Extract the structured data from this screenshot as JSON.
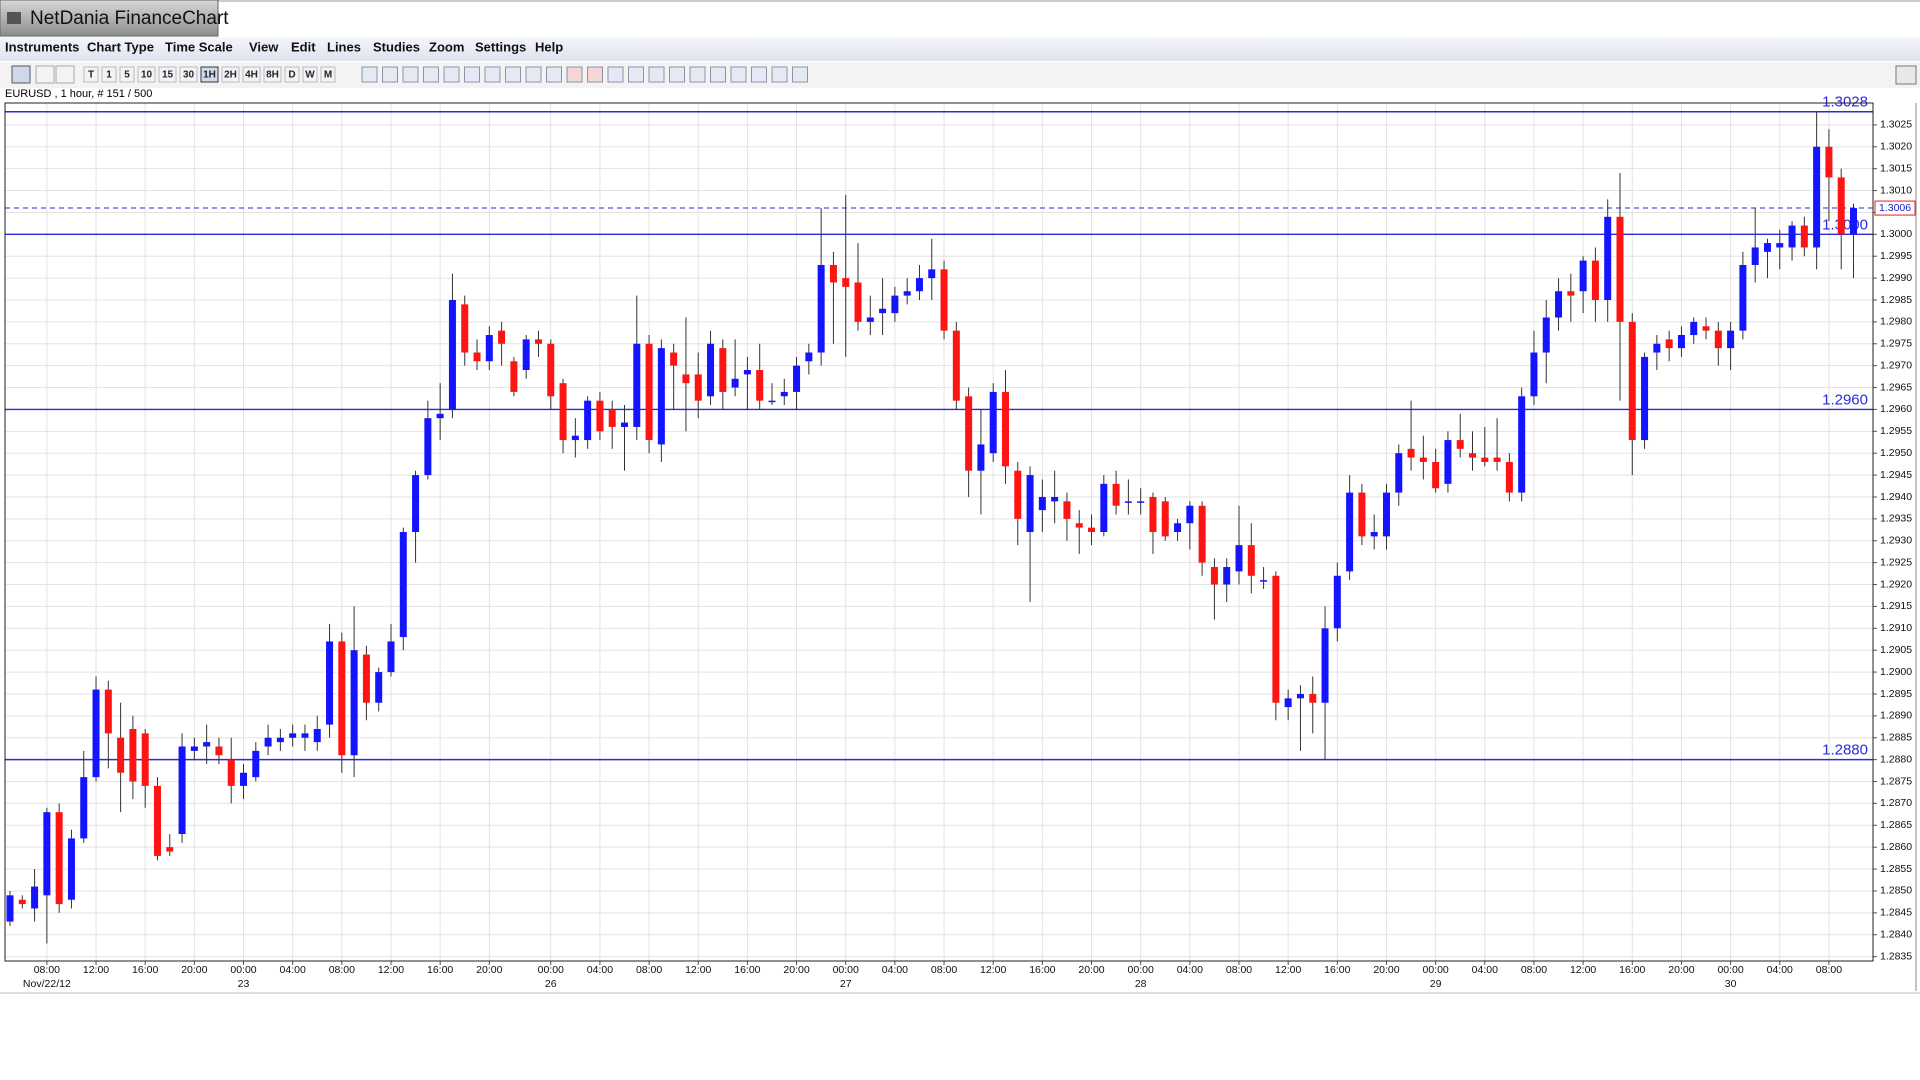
{
  "app": {
    "title": "NetDania FinanceChart",
    "menu": [
      "Instruments",
      "Chart Type",
      "Time Scale",
      "View",
      "Edit",
      "Lines",
      "Studies",
      "Zoom",
      "Settings",
      "Help"
    ],
    "timeframes": [
      "T",
      "1",
      "5",
      "10",
      "15",
      "30",
      "1H",
      "2H",
      "4H",
      "8H",
      "D",
      "W",
      "M"
    ],
    "info": "EURUSD , 1 hour, # 151 / 500"
  },
  "chart_data": {
    "type": "candlestick",
    "up_color": "#1414ff",
    "down_color": "#ff1414",
    "grid": true,
    "ylim": [
      1.2834,
      1.303
    ],
    "yticks": [
      1.2835,
      {
        "value": 1.284,
        "label": "1.2840"
      },
      1.2845,
      {
        "value": 1.285,
        "label": "1.2850"
      },
      1.2855,
      {
        "value": 1.286,
        "label": "1.2860"
      },
      1.2865,
      {
        "value": 1.287,
        "label": "1.2870"
      },
      1.2875,
      {
        "value": 1.288,
        "label": "1.2880"
      },
      1.2885,
      {
        "value": 1.289,
        "label": "1.2890"
      },
      1.2895,
      {
        "value": 1.29,
        "label": "1.2900"
      },
      1.2905,
      {
        "value": 1.291,
        "label": "1.2910"
      },
      1.2915,
      {
        "value": 1.292,
        "label": "1.2920"
      },
      1.2925,
      {
        "value": 1.293,
        "label": "1.2930"
      },
      1.2935,
      {
        "value": 1.294,
        "label": "1.2940"
      },
      1.2945,
      {
        "value": 1.295,
        "label": "1.2950"
      },
      1.2955,
      {
        "value": 1.296,
        "label": "1.2960"
      },
      1.2965,
      {
        "value": 1.297,
        "label": "1.2970"
      },
      1.2975,
      {
        "value": 1.298,
        "label": "1.2980"
      },
      1.2985,
      {
        "value": 1.299,
        "label": "1.2990"
      },
      1.2995,
      {
        "value": 1.3,
        "label": "1.3000"
      },
      1.3005,
      {
        "value": 1.301,
        "label": "1.3010"
      },
      1.3015,
      {
        "value": 1.302,
        "label": "1.3020"
      },
      1.3025
    ],
    "xticks": [
      {
        "value": 3,
        "label": "08:00"
      },
      {
        "value": 7,
        "label": "12:00"
      },
      {
        "value": 11,
        "label": "16:00"
      },
      {
        "value": 15,
        "label": "20:00"
      },
      {
        "value": 19,
        "label": "00:00"
      },
      {
        "value": 23,
        "label": "04:00"
      },
      {
        "value": 27,
        "label": "08:00"
      },
      {
        "value": 31,
        "label": "12:00"
      },
      {
        "value": 35,
        "label": "16:00"
      },
      {
        "value": 39,
        "label": "20:00"
      },
      {
        "value": 44,
        "label": "00:00"
      },
      {
        "value": 48,
        "label": "04:00"
      },
      {
        "value": 52,
        "label": "08:00"
      },
      {
        "value": 56,
        "label": "12:00"
      },
      {
        "value": 60,
        "label": "16:00"
      },
      {
        "value": 64,
        "label": "20:00"
      },
      {
        "value": 68,
        "label": "00:00"
      },
      {
        "value": 72,
        "label": "04:00"
      },
      {
        "value": 76,
        "label": "08:00"
      },
      {
        "value": 80,
        "label": "12:00"
      },
      {
        "value": 84,
        "label": "16:00"
      },
      {
        "value": 88,
        "label": "20:00"
      },
      {
        "value": 92,
        "label": "00:00"
      },
      {
        "value": 96,
        "label": "04:00"
      },
      {
        "value": 100,
        "label": "08:00"
      },
      {
        "value": 104,
        "label": "12:00"
      },
      {
        "value": 108,
        "label": "16:00"
      },
      {
        "value": 112,
        "label": "20:00"
      },
      {
        "value": 116,
        "label": "00:00"
      },
      {
        "value": 120,
        "label": "04:00"
      },
      {
        "value": 124,
        "label": "08:00"
      },
      {
        "value": 128,
        "label": "12:00"
      },
      {
        "value": 132,
        "label": "16:00"
      },
      {
        "value": 136,
        "label": "20:00"
      },
      {
        "value": 140,
        "label": "00:00"
      },
      {
        "value": 144,
        "label": "04:00"
      },
      {
        "value": 148,
        "label": "08:00"
      }
    ],
    "xdates": [
      {
        "value": 3,
        "label": "Nov/22/12"
      },
      {
        "value": 19,
        "label": "23"
      },
      {
        "value": 44,
        "label": "26"
      },
      {
        "value": 68,
        "label": "27"
      },
      {
        "value": 92,
        "label": "28"
      },
      {
        "value": 116,
        "label": "29"
      },
      {
        "value": 140,
        "label": "30"
      }
    ],
    "levels": [
      {
        "value": 1.3028,
        "label": "1.3028"
      },
      {
        "value": 1.3,
        "label": "1.3000"
      },
      {
        "value": 1.296,
        "label": "1.2960"
      },
      {
        "value": 1.288,
        "label": "1.2880"
      }
    ],
    "last_price": {
      "value": 1.3006,
      "label": "1.3006"
    },
    "candles": [
      [
        1.2843,
        1.285,
        1.2842,
        1.2849
      ],
      [
        1.2848,
        1.2849,
        1.2846,
        1.2847
      ],
      [
        1.2846,
        1.2855,
        1.2843,
        1.2851
      ],
      [
        1.2849,
        1.2869,
        1.2838,
        1.2868
      ],
      [
        1.2868,
        1.287,
        1.2845,
        1.2847
      ],
      [
        1.2848,
        1.2864,
        1.2846,
        1.2862
      ],
      [
        1.2862,
        1.2882,
        1.2861,
        1.2876
      ],
      [
        1.2876,
        1.2899,
        1.2875,
        1.2896
      ],
      [
        1.2896,
        1.2898,
        1.2878,
        1.2886
      ],
      [
        1.2885,
        1.2893,
        1.2868,
        1.2877
      ],
      [
        1.2887,
        1.289,
        1.2871,
        1.2875
      ],
      [
        1.2886,
        1.2887,
        1.2869,
        1.2874
      ],
      [
        1.2874,
        1.2876,
        1.2857,
        1.2858
      ],
      [
        1.286,
        1.2863,
        1.2858,
        1.2859
      ],
      [
        1.2863,
        1.2886,
        1.2861,
        1.2883
      ],
      [
        1.2882,
        1.2885,
        1.288,
        1.2883
      ],
      [
        1.2883,
        1.2888,
        1.2879,
        1.2884
      ],
      [
        1.2883,
        1.2885,
        1.2879,
        1.2881
      ],
      [
        1.288,
        1.2885,
        1.287,
        1.2874
      ],
      [
        1.2874,
        1.2879,
        1.2871,
        1.2877
      ],
      [
        1.2876,
        1.2884,
        1.2875,
        1.2882
      ],
      [
        1.2883,
        1.2888,
        1.2881,
        1.2885
      ],
      [
        1.2884,
        1.2887,
        1.2882,
        1.2885
      ],
      [
        1.2885,
        1.2888,
        1.2883,
        1.2886
      ],
      [
        1.2885,
        1.2888,
        1.2882,
        1.2886
      ],
      [
        1.2884,
        1.289,
        1.2882,
        1.2887
      ],
      [
        1.2888,
        1.2911,
        1.2885,
        1.2907
      ],
      [
        1.2907,
        1.2909,
        1.2877,
        1.2881
      ],
      [
        1.2881,
        1.2915,
        1.2876,
        1.2905
      ],
      [
        1.2904,
        1.2906,
        1.2889,
        1.2893
      ],
      [
        1.2893,
        1.2901,
        1.2891,
        1.29
      ],
      [
        1.29,
        1.2911,
        1.2899,
        1.2907
      ],
      [
        1.2908,
        1.2933,
        1.2905,
        1.2932
      ],
      [
        1.2932,
        1.2946,
        1.2925,
        1.2945
      ],
      [
        1.2945,
        1.2962,
        1.2944,
        1.2958
      ],
      [
        1.2958,
        1.2966,
        1.2953,
        1.2959
      ],
      [
        1.296,
        1.2991,
        1.2958,
        1.2985
      ],
      [
        1.2984,
        1.2986,
        1.297,
        1.2973
      ],
      [
        1.2973,
        1.2976,
        1.2969,
        1.2971
      ],
      [
        1.2971,
        1.2979,
        1.2969,
        1.2977
      ],
      [
        1.2978,
        1.298,
        1.297,
        1.2975
      ],
      [
        1.2971,
        1.2972,
        1.2963,
        1.2964
      ],
      [
        1.2969,
        1.2977,
        1.2967,
        1.2976
      ],
      [
        1.2976,
        1.2978,
        1.2972,
        1.2975
      ],
      [
        1.2975,
        1.2976,
        1.296,
        1.2963
      ],
      [
        1.2966,
        1.2967,
        1.295,
        1.2953
      ],
      [
        1.2953,
        1.2958,
        1.2949,
        1.2954
      ],
      [
        1.2953,
        1.2963,
        1.2951,
        1.2962
      ],
      [
        1.2962,
        1.2964,
        1.2953,
        1.2955
      ],
      [
        1.296,
        1.2962,
        1.2951,
        1.2956
      ],
      [
        1.2956,
        1.2961,
        1.2946,
        1.2957
      ],
      [
        1.2956,
        1.2986,
        1.2953,
        1.2975
      ],
      [
        1.2975,
        1.2977,
        1.295,
        1.2953
      ],
      [
        1.2952,
        1.2976,
        1.2948,
        1.2974
      ],
      [
        1.2973,
        1.2975,
        1.296,
        1.297
      ],
      [
        1.2968,
        1.2981,
        1.2955,
        1.2966
      ],
      [
        1.2968,
        1.2973,
        1.2958,
        1.2962
      ],
      [
        1.2963,
        1.2978,
        1.2961,
        1.2975
      ],
      [
        1.2974,
        1.2976,
        1.296,
        1.2964
      ],
      [
        1.2965,
        1.2976,
        1.2963,
        1.2967
      ],
      [
        1.2968,
        1.2972,
        1.296,
        1.2969
      ],
      [
        1.2969,
        1.2975,
        1.296,
        1.2962
      ],
      [
        1.2962,
        1.2966,
        1.2961,
        1.2962
      ],
      [
        1.2963,
        1.2967,
        1.2961,
        1.2964
      ],
      [
        1.2964,
        1.2972,
        1.296,
        1.297
      ],
      [
        1.2971,
        1.2975,
        1.2968,
        1.2973
      ],
      [
        1.2973,
        1.3006,
        1.297,
        1.2993
      ],
      [
        1.2993,
        1.2996,
        1.2975,
        1.2989
      ],
      [
        1.299,
        1.3009,
        1.2972,
        1.2988
      ],
      [
        1.2989,
        1.2998,
        1.2978,
        1.298
      ],
      [
        1.298,
        1.2986,
        1.2977,
        1.2981
      ],
      [
        1.2982,
        1.299,
        1.2977,
        1.2983
      ],
      [
        1.2982,
        1.2988,
        1.298,
        1.2986
      ],
      [
        1.2986,
        1.299,
        1.2984,
        1.2987
      ],
      [
        1.2987,
        1.2993,
        1.2985,
        1.299
      ],
      [
        1.299,
        1.2999,
        1.2985,
        1.2992
      ],
      [
        1.2992,
        1.2994,
        1.2976,
        1.2978
      ],
      [
        1.2978,
        1.298,
        1.296,
        1.2962
      ],
      [
        1.2963,
        1.2965,
        1.294,
        1.2946
      ],
      [
        1.2946,
        1.296,
        1.2936,
        1.2952
      ],
      [
        1.295,
        1.2966,
        1.2948,
        1.2964
      ],
      [
        1.2964,
        1.2969,
        1.2943,
        1.2947
      ],
      [
        1.2946,
        1.2948,
        1.2929,
        1.2935
      ],
      [
        1.2932,
        1.2947,
        1.2916,
        1.2945
      ],
      [
        1.2937,
        1.2944,
        1.2932,
        1.294
      ],
      [
        1.2939,
        1.2946,
        1.2934,
        1.294
      ],
      [
        1.2939,
        1.2941,
        1.293,
        1.2935
      ],
      [
        1.2934,
        1.2937,
        1.2927,
        1.2933
      ],
      [
        1.2933,
        1.2936,
        1.2929,
        1.2932
      ],
      [
        1.2932,
        1.2945,
        1.2931,
        1.2943
      ],
      [
        1.2943,
        1.2946,
        1.2936,
        1.2938
      ],
      [
        1.2939,
        1.2944,
        1.2936,
        1.2939
      ],
      [
        1.2939,
        1.2942,
        1.2936,
        1.2939
      ],
      [
        1.294,
        1.2941,
        1.2927,
        1.2932
      ],
      [
        1.2939,
        1.294,
        1.293,
        1.2931
      ],
      [
        1.2932,
        1.2935,
        1.293,
        1.2934
      ],
      [
        1.2934,
        1.2939,
        1.2928,
        1.2938
      ],
      [
        1.2938,
        1.2939,
        1.2922,
        1.2925
      ],
      [
        1.2924,
        1.2926,
        1.2912,
        1.292
      ],
      [
        1.292,
        1.2926,
        1.2916,
        1.2924
      ],
      [
        1.2923,
        1.2938,
        1.292,
        1.2929
      ],
      [
        1.2929,
        1.2934,
        1.2918,
        1.2922
      ],
      [
        1.2921,
        1.2924,
        1.2919,
        1.2921
      ],
      [
        1.2922,
        1.2923,
        1.2889,
        1.2893
      ],
      [
        1.2892,
        1.2896,
        1.2889,
        1.2894
      ],
      [
        1.2894,
        1.2897,
        1.2882,
        1.2895
      ],
      [
        1.2895,
        1.2899,
        1.2886,
        1.2893
      ],
      [
        1.2893,
        1.2915,
        1.288,
        1.291
      ],
      [
        1.291,
        1.2925,
        1.2907,
        1.2922
      ],
      [
        1.2923,
        1.2945,
        1.2921,
        1.2941
      ],
      [
        1.2941,
        1.2943,
        1.2929,
        1.2931
      ],
      [
        1.2931,
        1.2936,
        1.2928,
        1.2932
      ],
      [
        1.2931,
        1.2943,
        1.2928,
        1.2941
      ],
      [
        1.2941,
        1.2952,
        1.2938,
        1.295
      ],
      [
        1.2951,
        1.2962,
        1.2946,
        1.2949
      ],
      [
        1.2949,
        1.2954,
        1.2944,
        1.2948
      ],
      [
        1.2948,
        1.2951,
        1.2941,
        1.2942
      ],
      [
        1.2943,
        1.2955,
        1.2941,
        1.2953
      ],
      [
        1.2953,
        1.2959,
        1.2949,
        1.2951
      ],
      [
        1.295,
        1.2955,
        1.2946,
        1.2949
      ],
      [
        1.2949,
        1.2956,
        1.2947,
        1.2948
      ],
      [
        1.2949,
        1.2958,
        1.2946,
        1.2948
      ],
      [
        1.2948,
        1.295,
        1.2939,
        1.2941
      ],
      [
        1.2941,
        1.2965,
        1.2939,
        1.2963
      ],
      [
        1.2963,
        1.2978,
        1.2961,
        1.2973
      ],
      [
        1.2973,
        1.2985,
        1.2966,
        1.2981
      ],
      [
        1.2981,
        1.299,
        1.2978,
        1.2987
      ],
      [
        1.2987,
        1.2991,
        1.298,
        1.2986
      ],
      [
        1.2987,
        1.2995,
        1.2982,
        1.2994
      ],
      [
        1.2994,
        1.2997,
        1.298,
        1.2985
      ],
      [
        1.2985,
        1.3008,
        1.298,
        1.3004
      ],
      [
        1.3004,
        1.3014,
        1.2962,
        1.298
      ],
      [
        1.298,
        1.2982,
        1.2945,
        1.2953
      ],
      [
        1.2953,
        1.2973,
        1.2951,
        1.2972
      ],
      [
        1.2973,
        1.2977,
        1.2969,
        1.2975
      ],
      [
        1.2976,
        1.2978,
        1.2971,
        1.2974
      ],
      [
        1.2974,
        1.2979,
        1.2972,
        1.2977
      ],
      [
        1.2977,
        1.2981,
        1.2975,
        1.298
      ],
      [
        1.2979,
        1.2981,
        1.2976,
        1.2978
      ],
      [
        1.2978,
        1.298,
        1.297,
        1.2974
      ],
      [
        1.2974,
        1.298,
        1.2969,
        1.2978
      ],
      [
        1.2978,
        1.2996,
        1.2976,
        1.2993
      ],
      [
        1.2993,
        1.3006,
        1.2989,
        1.2997
      ],
      [
        1.2996,
        1.2999,
        1.299,
        1.2998
      ],
      [
        1.2997,
        1.3001,
        1.2992,
        1.2998
      ],
      [
        1.2997,
        1.3003,
        1.2994,
        1.3002
      ],
      [
        1.3002,
        1.3004,
        1.2995,
        1.2997
      ],
      [
        1.2997,
        1.3028,
        1.2992,
        1.302
      ],
      [
        1.302,
        1.3024,
        1.3003,
        1.3013
      ],
      [
        1.3013,
        1.3015,
        1.2992,
        1.3
      ],
      [
        1.3,
        1.3007,
        1.299,
        1.3006
      ]
    ]
  }
}
